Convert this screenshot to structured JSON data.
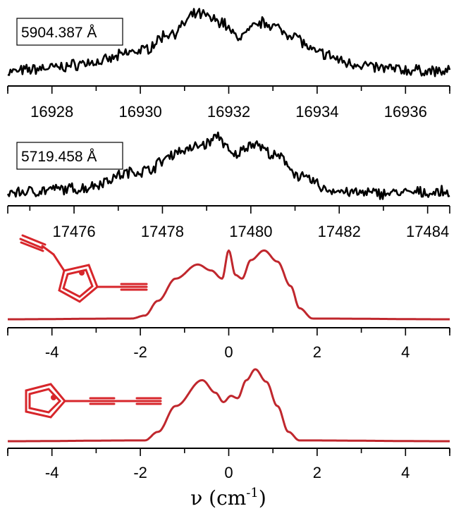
{
  "chart_data": [
    {
      "type": "line",
      "label": "5904.387 Å",
      "xlim": [
        16927,
        16937
      ],
      "ticks": [
        16928,
        16930,
        16932,
        16934,
        16936
      ],
      "tick_labels": [
        "16928",
        "16930",
        "16932",
        "16934",
        "16936"
      ],
      "series": [
        {
          "color": "#000000",
          "noisy": true,
          "x": [
            16927.0,
            16928.0,
            16929.0,
            16930.0,
            16930.7,
            16931.3,
            16931.8,
            16932.2,
            16932.8,
            16933.4,
            16934.0,
            16934.8,
            16935.5,
            16936.2,
            16937.0
          ],
          "y": [
            0.1,
            0.16,
            0.24,
            0.4,
            0.65,
            0.92,
            0.82,
            0.6,
            0.8,
            0.64,
            0.37,
            0.22,
            0.15,
            0.12,
            0.1
          ]
        }
      ]
    },
    {
      "type": "line",
      "label": "5719.458 Å",
      "xlim": [
        17474.5,
        17484.5
      ],
      "ticks": [
        17476,
        17478,
        17480,
        17482,
        17484
      ],
      "tick_labels": [
        "17476",
        "17478",
        "17480",
        "17482",
        "17484"
      ],
      "series": [
        {
          "color": "#000000",
          "noisy": true,
          "x": [
            17474.5,
            17476.0,
            17477.5,
            17478.5,
            17479.0,
            17479.25,
            17479.6,
            17480.05,
            17480.6,
            17481.2,
            17481.8,
            17482.5,
            17484.5
          ],
          "y": [
            0.05,
            0.1,
            0.35,
            0.65,
            0.74,
            0.85,
            0.57,
            0.75,
            0.55,
            0.25,
            0.08,
            0.04,
            0.05
          ]
        }
      ]
    },
    {
      "type": "line",
      "xlim": [
        -5,
        5
      ],
      "ticks": [
        -4,
        -2,
        0,
        2,
        4
      ],
      "tick_labels": [
        "-4",
        "-2",
        "0",
        "2",
        "4"
      ],
      "series": [
        {
          "color": "#c0272d",
          "noisy": false,
          "x": [
            -5.0,
            -2.2,
            -1.9,
            -1.6,
            -1.2,
            -0.7,
            -0.4,
            -0.15,
            0.0,
            0.15,
            0.3,
            0.5,
            0.8,
            1.1,
            1.4,
            1.6,
            1.9,
            5.0
          ],
          "y": [
            0.0,
            0.01,
            0.05,
            0.25,
            0.55,
            0.74,
            0.66,
            0.55,
            0.93,
            0.6,
            0.55,
            0.8,
            0.93,
            0.78,
            0.45,
            0.15,
            0.01,
            0.0
          ]
        }
      ]
    },
    {
      "type": "line",
      "xlim": [
        -5,
        5
      ],
      "ticks": [
        -4,
        -2,
        0,
        2,
        4
      ],
      "tick_labels": [
        "-4",
        "-2",
        "0",
        "2",
        "4"
      ],
      "xlabel": "ν (cm⁻¹)",
      "series": [
        {
          "color": "#c0272d",
          "noisy": false,
          "x": [
            -5.0,
            -1.9,
            -1.6,
            -1.2,
            -0.6,
            -0.3,
            -0.12,
            0.05,
            0.2,
            0.4,
            0.6,
            0.85,
            1.1,
            1.35,
            1.6,
            5.0
          ],
          "y": [
            0.0,
            0.01,
            0.12,
            0.45,
            0.78,
            0.62,
            0.5,
            0.58,
            0.55,
            0.78,
            0.92,
            0.76,
            0.45,
            0.12,
            0.01,
            0.0
          ]
        }
      ]
    }
  ]
}
